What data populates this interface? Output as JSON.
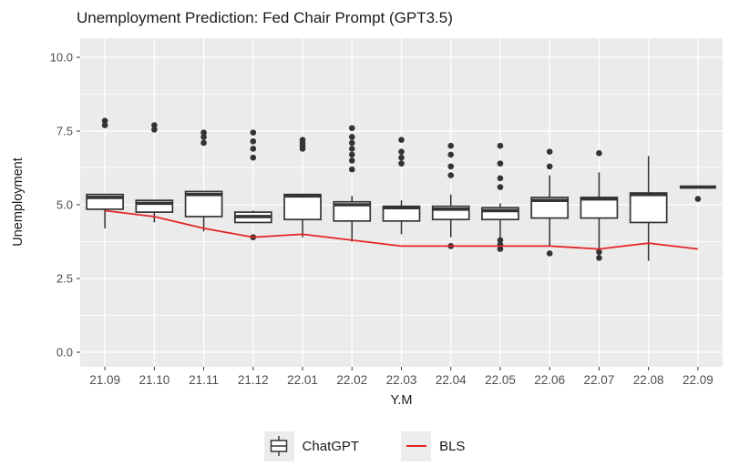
{
  "colors": {
    "panel_bg": "#ebebeb",
    "grid": "#ffffff",
    "box_fill": "#ffffff",
    "box_stroke": "#333333",
    "outlier": "#333333",
    "bls_line": "#e42527",
    "axis_text": "#4d4d4d",
    "tick_mark": "#333333",
    "legend_key_bg": "#ececec"
  },
  "legend": {
    "items": [
      {
        "label": "ChatGPT",
        "type": "boxplot"
      },
      {
        "label": "BLS",
        "type": "line"
      }
    ]
  },
  "chart_data": {
    "type": "boxplot+line",
    "title": "Unemployment Prediction: Fed Chair Prompt (GPT3.5)",
    "xlabel": "Y.M",
    "ylabel": "Unemployment",
    "ylim": [
      -0.5,
      10.65
    ],
    "grid": true,
    "legend_position": "bottom",
    "y_ticks": [
      0.0,
      2.5,
      5.0,
      7.5,
      10.0
    ],
    "y_tick_labels": [
      "0.0",
      "2.5",
      "5.0",
      "7.5",
      "10.0"
    ],
    "y_minor_ticks": [
      1.25,
      3.75,
      6.25,
      8.75
    ],
    "categories": [
      "21.09",
      "21.10",
      "21.11",
      "21.12",
      "22.01",
      "22.02",
      "22.03",
      "22.04",
      "22.05",
      "22.06",
      "22.07",
      "22.08",
      "22.09"
    ],
    "boxplots": [
      {
        "category": "21.09",
        "q1": 4.85,
        "median": 5.25,
        "q3": 5.35,
        "whisker_low": 4.2,
        "whisker_high": 5.35,
        "outliers": [
          7.7,
          7.85
        ]
      },
      {
        "category": "21.10",
        "q1": 4.75,
        "median": 5.05,
        "q3": 5.15,
        "whisker_low": 4.4,
        "whisker_high": 5.15,
        "outliers": [
          7.55,
          7.7
        ]
      },
      {
        "category": "21.11",
        "q1": 4.6,
        "median": 5.35,
        "q3": 5.45,
        "whisker_low": 4.1,
        "whisker_high": 5.45,
        "outliers": [
          7.1,
          7.3,
          7.45
        ]
      },
      {
        "category": "21.12",
        "q1": 4.4,
        "median": 4.6,
        "q3": 4.75,
        "whisker_low": 4.4,
        "whisker_high": 4.8,
        "outliers": [
          3.9,
          6.6,
          6.9,
          7.15,
          7.45
        ]
      },
      {
        "category": "22.01",
        "q1": 4.5,
        "median": 5.3,
        "q3": 5.35,
        "whisker_low": 3.9,
        "whisker_high": 5.35,
        "outliers": [
          6.9,
          7.0,
          7.1,
          7.2
        ]
      },
      {
        "category": "22.02",
        "q1": 4.45,
        "median": 5.0,
        "q3": 5.1,
        "whisker_low": 3.75,
        "whisker_high": 5.3,
        "outliers": [
          6.2,
          6.5,
          6.7,
          6.9,
          7.1,
          7.3,
          7.6
        ]
      },
      {
        "category": "22.03",
        "q1": 4.45,
        "median": 4.9,
        "q3": 4.95,
        "whisker_low": 4.0,
        "whisker_high": 5.15,
        "outliers": [
          6.4,
          6.6,
          6.8,
          7.2
        ]
      },
      {
        "category": "22.04",
        "q1": 4.5,
        "median": 4.85,
        "q3": 4.95,
        "whisker_low": 3.9,
        "whisker_high": 5.35,
        "outliers": [
          3.6,
          6.0,
          6.3,
          6.7,
          7.0
        ]
      },
      {
        "category": "22.05",
        "q1": 4.5,
        "median": 4.8,
        "q3": 4.9,
        "whisker_low": 3.9,
        "whisker_high": 5.05,
        "outliers": [
          3.5,
          3.65,
          3.8,
          5.6,
          5.9,
          6.4,
          7.0
        ]
      },
      {
        "category": "22.06",
        "q1": 4.55,
        "median": 5.15,
        "q3": 5.25,
        "whisker_low": 3.6,
        "whisker_high": 6.0,
        "outliers": [
          3.35,
          6.3,
          6.8
        ]
      },
      {
        "category": "22.07",
        "q1": 4.55,
        "median": 5.2,
        "q3": 5.25,
        "whisker_low": 3.5,
        "whisker_high": 6.1,
        "outliers": [
          3.2,
          3.4,
          6.75
        ]
      },
      {
        "category": "22.08",
        "q1": 4.4,
        "median": 5.35,
        "q3": 5.4,
        "whisker_low": 3.1,
        "whisker_high": 6.65,
        "outliers": []
      },
      {
        "category": "22.09",
        "q1": 5.6,
        "median": 5.6,
        "q3": 5.6,
        "whisker_low": null,
        "whisker_high": null,
        "outliers": [
          5.2
        ]
      }
    ],
    "series": [
      {
        "name": "BLS",
        "type": "line",
        "values": [
          4.8,
          4.6,
          4.2,
          3.9,
          4.0,
          3.8,
          3.6,
          3.6,
          3.6,
          3.6,
          3.5,
          3.7,
          3.5
        ]
      }
    ]
  }
}
